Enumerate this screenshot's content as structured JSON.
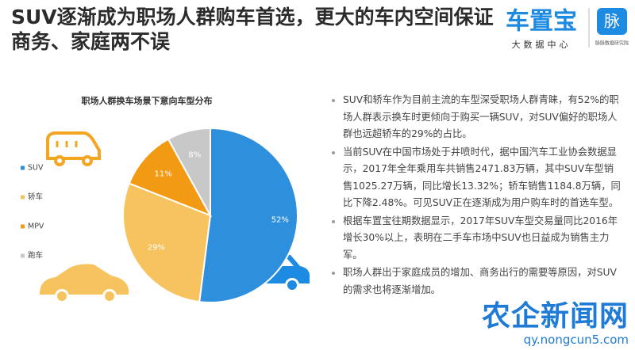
{
  "header": {
    "title_lines": [
      "SUV逐渐成为职场人群购车首选，更大的车内空间保证",
      "商务、家庭两不误"
    ]
  },
  "logo": {
    "brand": "车置宝",
    "brand_sub": "大数据中心",
    "mark": "脉",
    "mark_sub": "脉脉数据研究院"
  },
  "chart_data": {
    "type": "pie",
    "title": "职场人群换车场景下意向车型分布",
    "categories": [
      "SUV",
      "轿车",
      "MPV",
      "跑车"
    ],
    "values": [
      52,
      29,
      11,
      8
    ],
    "value_labels": [
      "52%",
      "29%",
      "11%",
      "8%"
    ],
    "colors": [
      "#2e8fdc",
      "#f6c35e",
      "#f39a14",
      "#c8c8c8"
    ]
  },
  "bullets": [
    "SUV和轿车作为目前主流的车型深受职场人群青睐，有52%的职场人群表示换车时更倾向于购买一辆SUV，对SUV偏好的职场人群也远超轿车的29%的占比。",
    "当前SUV在中国市场处于井喷时代，据中国汽车工业协会数据显示，2017年全年乘用车共销售2471.83万辆，其中SUV车型销售1025.27万辆，同比增长13.32%；轿车销售1184.8万辆，同比下降2.48%。可见SUV正在逐渐成为用户购车时的首选车型。",
    "根据车置宝往期数据显示，2017年SUV车型交易量同比2016年增长30%以上，表明在二手车市场中SUV也日益成为销售主力军。",
    "职场人群出于家庭成员的增加、商务出行的需要等原因，对SUV的需求也将逐渐增加。"
  ],
  "watermark": {
    "name": "农企新闻网",
    "url": "qy.nongcun5.com"
  }
}
